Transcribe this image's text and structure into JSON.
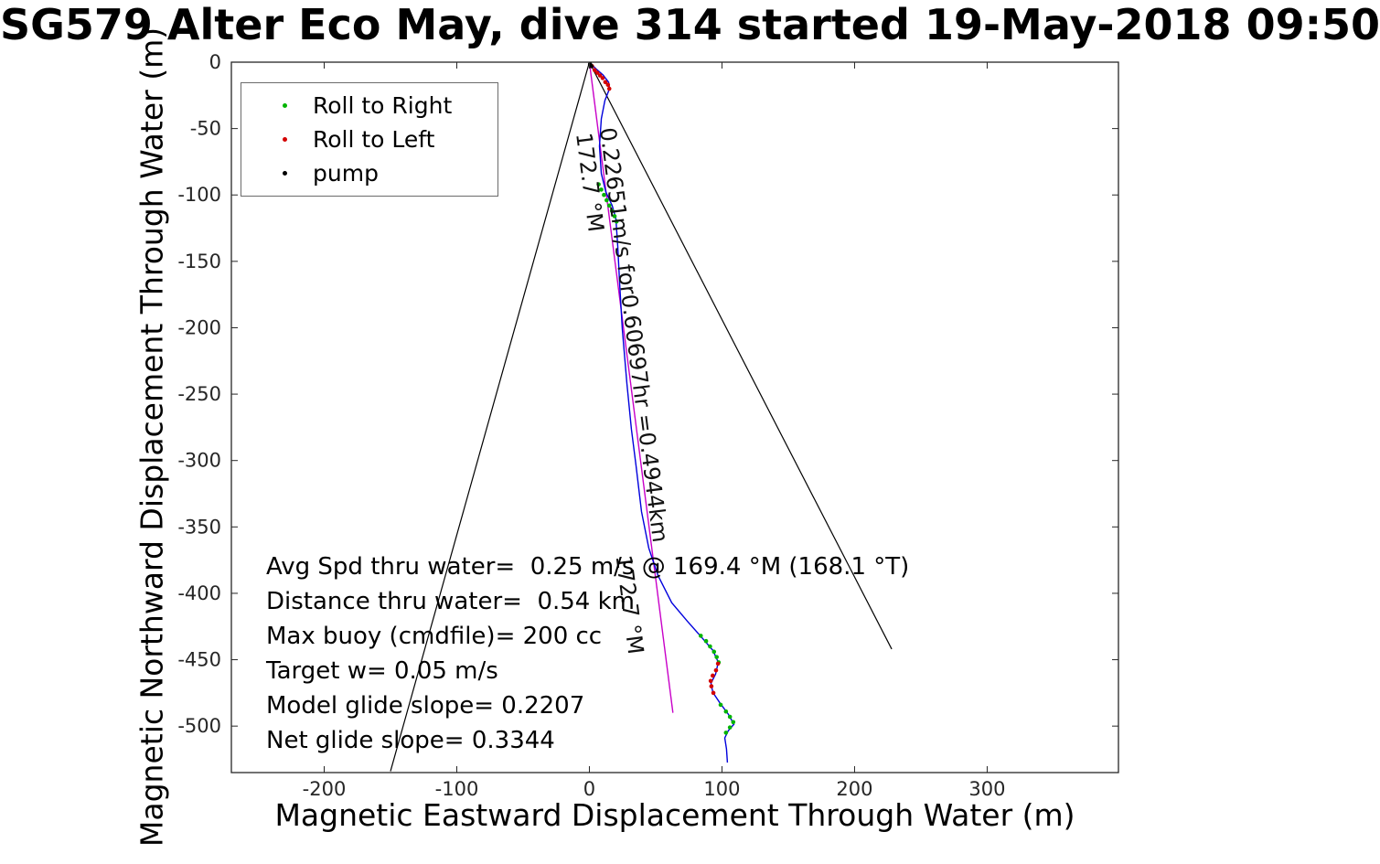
{
  "chart_data": {
    "type": "line",
    "title": "SG579 Alter Eco May, dive 314 started 19-May-2018 09:50",
    "xlabel": "Magnetic Eastward Displacement Through Water (m)",
    "ylabel": "Magnetic Northward Displacement Through Water (m)",
    "xlim": [
      -270,
      399
    ],
    "ylim": [
      -535,
      0
    ],
    "xticks": [
      -200,
      -100,
      0,
      100,
      200,
      300
    ],
    "yticks": [
      0,
      -50,
      -100,
      -150,
      -200,
      -250,
      -300,
      -350,
      -400,
      -450,
      -500
    ],
    "grid": false,
    "frame_color": "#262626",
    "legend": {
      "position": "northwest",
      "entries": [
        {
          "label": "Roll to Right",
          "color": "#00b400",
          "marker": "dot"
        },
        {
          "label": "Roll to Left",
          "color": "#d40000",
          "marker": "dot"
        },
        {
          "label": "pump",
          "color": "#000000",
          "marker": "dot"
        }
      ]
    },
    "series": [
      {
        "name": "bearing-envelope-left",
        "type": "line",
        "color": "#000000",
        "width": 1.2,
        "points": [
          [
            0,
            0
          ],
          [
            -150,
            -534
          ]
        ]
      },
      {
        "name": "bearing-envelope-right",
        "type": "line",
        "color": "#000000",
        "width": 1.2,
        "points": [
          [
            0,
            0
          ],
          [
            228,
            -442
          ]
        ]
      },
      {
        "name": "avg-course-line",
        "type": "line",
        "color": "#c800c8",
        "width": 1.4,
        "points": [
          [
            0,
            0
          ],
          [
            63,
            -490
          ]
        ]
      },
      {
        "name": "track-through-water",
        "type": "line",
        "color": "#0000dd",
        "width": 1.4,
        "points": [
          [
            0,
            0
          ],
          [
            4.8,
            -4.8
          ],
          [
            10.3,
            -9.6
          ],
          [
            14.5,
            -15.1
          ],
          [
            15.2,
            -19.9
          ],
          [
            11.7,
            -28.9
          ],
          [
            9.0,
            -42.6
          ],
          [
            7.6,
            -63.3
          ],
          [
            9.0,
            -83.9
          ],
          [
            12.4,
            -97.7
          ],
          [
            17.2,
            -108.0
          ],
          [
            20.0,
            -118.0
          ],
          [
            21.4,
            -138.9
          ],
          [
            22.8,
            -166.4
          ],
          [
            24.8,
            -200.8
          ],
          [
            28.3,
            -242.1
          ],
          [
            31.7,
            -276.5
          ],
          [
            35.2,
            -304.0
          ],
          [
            39.3,
            -338.4
          ],
          [
            44.8,
            -365.9
          ],
          [
            51.7,
            -386.5
          ],
          [
            62.1,
            -407.1
          ],
          [
            73.8,
            -420.9
          ],
          [
            84.8,
            -433.3
          ],
          [
            93.1,
            -442.9
          ],
          [
            97.2,
            -451.9
          ],
          [
            95.2,
            -460.8
          ],
          [
            91.7,
            -467.7
          ],
          [
            93.1,
            -474.6
          ],
          [
            98.6,
            -482.8
          ],
          [
            104.8,
            -491.1
          ],
          [
            109.0,
            -498.6
          ],
          [
            104.8,
            -503.4
          ],
          [
            102.1,
            -508.9
          ],
          [
            103.4,
            -517.2
          ],
          [
            104.1,
            -527.5
          ]
        ]
      },
      {
        "name": "roll-to-right-markers",
        "type": "scatter",
        "color": "#00b400",
        "points": [
          [
            7,
            -92
          ],
          [
            9,
            -96
          ],
          [
            11,
            -100
          ],
          [
            13,
            -104
          ],
          [
            15,
            -108
          ],
          [
            17,
            -112
          ],
          [
            19,
            -116
          ],
          [
            20.5,
            -120
          ],
          [
            84,
            -432
          ],
          [
            88,
            -436
          ],
          [
            91,
            -440
          ],
          [
            94,
            -444
          ],
          [
            96,
            -448
          ],
          [
            97.5,
            -452
          ],
          [
            99,
            -484
          ],
          [
            103,
            -489
          ],
          [
            106,
            -493
          ],
          [
            108.5,
            -497
          ],
          [
            106,
            -501
          ],
          [
            103,
            -505
          ]
        ]
      },
      {
        "name": "roll-to-left-markers",
        "type": "scatter",
        "color": "#d40000",
        "points": [
          [
            2,
            -3
          ],
          [
            4,
            -6
          ],
          [
            6,
            -8
          ],
          [
            8,
            -10
          ],
          [
            10,
            -12
          ],
          [
            12,
            -15
          ],
          [
            14,
            -17
          ],
          [
            15,
            -20
          ],
          [
            97,
            -453
          ],
          [
            95.5,
            -458
          ],
          [
            93,
            -462
          ],
          [
            91.5,
            -466
          ],
          [
            92,
            -470
          ],
          [
            93.5,
            -475
          ]
        ]
      },
      {
        "name": "pump-markers",
        "type": "scatter",
        "color": "#000000",
        "points": [
          [
            0.5,
            -1.5
          ],
          [
            1.5,
            -3
          ]
        ]
      }
    ],
    "annotations": [
      {
        "text": "0.22651m/s for0.60697hr =0.4944km",
        "x": 8,
        "y": -50,
        "rotation": 82.7
      },
      {
        "text": "172.7 °M",
        "x": -10,
        "y": -54,
        "rotation": 82.7
      },
      {
        "text": "172.7 °M",
        "x": 20,
        "y": -372,
        "rotation": 82.7
      }
    ],
    "stats_lines": [
      "Avg Spd thru water=  0.25 m/s @ 169.4 °M (168.1 °T)",
      "Distance thru water=  0.54 km",
      "Max buoy (cmdfile)= 200 cc",
      "Target w= 0.05 m/s",
      "Model glide slope= 0.2207",
      "Net glide slope= 0.3344"
    ]
  }
}
